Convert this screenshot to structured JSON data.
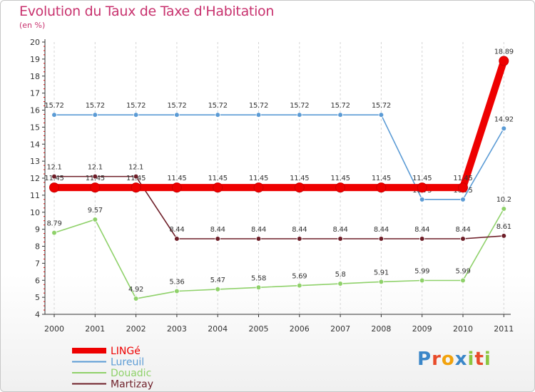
{
  "chart_data": {
    "type": "line",
    "title": "Evolution du Taux de Taxe d'Habitation",
    "subtitle": "(en %)",
    "x": [
      "2000",
      "2001",
      "2002",
      "2003",
      "2004",
      "2005",
      "2006",
      "2007",
      "2008",
      "2009",
      "2010",
      "2011"
    ],
    "ylim": [
      4,
      20
    ],
    "yticks": [
      4,
      5,
      6,
      7,
      8,
      9,
      10,
      11,
      12,
      13,
      14,
      15,
      16,
      17,
      18,
      19,
      20
    ],
    "grid": "vertical dashed",
    "legend_position": "bottom-left",
    "series": [
      {
        "name": "Lureuil",
        "color": "#5b9bd5",
        "values": [
          15.72,
          15.72,
          15.72,
          15.72,
          15.72,
          15.72,
          15.72,
          15.72,
          15.72,
          10.75,
          10.75,
          14.92
        ],
        "labels": [
          "15.72",
          "15.72",
          "15.72",
          "15.72",
          "15.72",
          "15.72",
          "15.72",
          "15.72",
          "15.72",
          "10.75",
          "10.75",
          "14.92"
        ]
      },
      {
        "name": "Douadic",
        "color": "#8fd16a",
        "values": [
          8.79,
          9.57,
          4.92,
          5.36,
          5.47,
          5.58,
          5.69,
          5.8,
          5.91,
          5.99,
          5.99,
          10.2
        ],
        "labels": [
          "8.79",
          "9.57",
          "4.92",
          "5.36",
          "5.47",
          "5.58",
          "5.69",
          "5.8",
          "5.91",
          "5.99",
          "5.99",
          "10.2"
        ]
      },
      {
        "name": "Martizay",
        "color": "#6e1e28",
        "values": [
          12.1,
          12.1,
          12.1,
          8.44,
          8.44,
          8.44,
          8.44,
          8.44,
          8.44,
          8.44,
          8.44,
          8.61
        ],
        "labels": [
          "12.1",
          "12.1",
          "12.1",
          "8.44",
          "8.44",
          "8.44",
          "8.44",
          "8.44",
          "8.44",
          "8.44",
          "8.44",
          "8.61"
        ]
      },
      {
        "name": "LINGé",
        "color": "#ee0000",
        "values": [
          11.45,
          11.45,
          11.45,
          11.45,
          11.45,
          11.45,
          11.45,
          11.45,
          11.45,
          11.45,
          11.45,
          18.89
        ],
        "labels": [
          "11.45",
          "11.45",
          "11.45",
          "11.45",
          "11.45",
          "11.45",
          "11.45",
          "11.45",
          "11.45",
          "11.45",
          "11.45",
          "18.89"
        ]
      }
    ],
    "legend": [
      "LINGé",
      "Lureuil",
      "Douadic",
      "Martizay"
    ]
  },
  "logo": {
    "text": "Proxiti"
  }
}
